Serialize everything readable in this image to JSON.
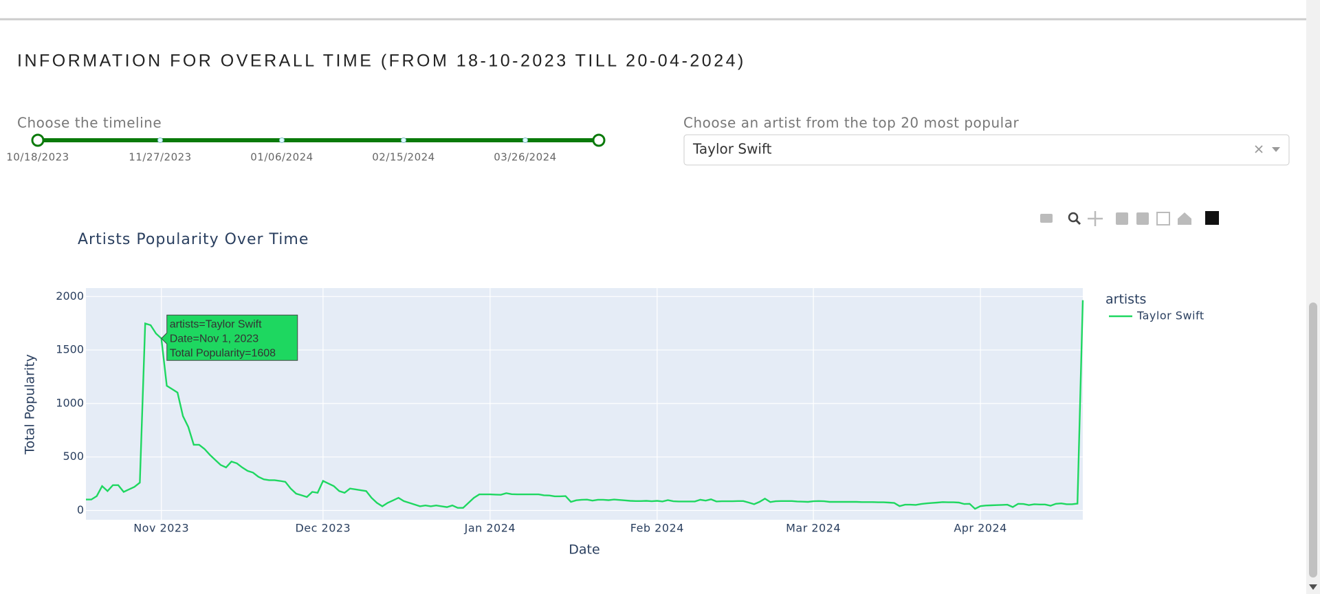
{
  "header": {
    "title": "INFORMATION FOR OVERALL TIME (FROM 18-10-2023 TILL 20-04-2024)"
  },
  "timeline": {
    "label": "Choose the timeline",
    "marks": [
      "10/18/2023",
      "11/27/2023",
      "01/06/2024",
      "02/15/2024",
      "03/26/2024"
    ]
  },
  "artist_select": {
    "label": "Choose an artist from the top 20 most popular",
    "value": "Taylor Swift"
  },
  "chart_data": {
    "type": "line",
    "title": "Artists Popularity Over Time",
    "x_label": "Date",
    "y_label": "Total Popularity",
    "legend_title": "artists",
    "grid": true,
    "tooltip": [
      "artists=Taylor Swift",
      "Date=Nov 1, 2023",
      "Total Popularity=1608"
    ],
    "xlim": [
      "2023-10-18",
      "2024-04-20"
    ],
    "xticks": [
      {
        "value": "2023-11-01",
        "label": "Nov 2023"
      },
      {
        "value": "2023-12-01",
        "label": "Dec 2023"
      },
      {
        "value": "2024-01-01",
        "label": "Jan 2024"
      },
      {
        "value": "2024-02-01",
        "label": "Feb 2024"
      },
      {
        "value": "2024-03-01",
        "label": "Mar 2024"
      },
      {
        "value": "2024-04-01",
        "label": "Apr 2024"
      }
    ],
    "ylim": [
      -87,
      2079
    ],
    "yticks": [
      0,
      500,
      1000,
      1500,
      2000
    ],
    "x": [
      "2023-10-18",
      "2023-10-19",
      "2023-10-20",
      "2023-10-21",
      "2023-10-22",
      "2023-10-23",
      "2023-10-24",
      "2023-10-25",
      "2023-10-26",
      "2023-10-27",
      "2023-10-28",
      "2023-10-29",
      "2023-10-30",
      "2023-10-31",
      "2023-11-01",
      "2023-11-02",
      "2023-11-03",
      "2023-11-04",
      "2023-11-05",
      "2023-11-06",
      "2023-11-07",
      "2023-11-08",
      "2023-11-09",
      "2023-11-10",
      "2023-11-11",
      "2023-11-12",
      "2023-11-13",
      "2023-11-14",
      "2023-11-15",
      "2023-11-16",
      "2023-11-17",
      "2023-11-18",
      "2023-11-19",
      "2023-11-20",
      "2023-11-21",
      "2023-11-22",
      "2023-11-23",
      "2023-11-24",
      "2023-11-25",
      "2023-11-26",
      "2023-11-27",
      "2023-11-28",
      "2023-11-29",
      "2023-11-30",
      "2023-12-01",
      "2023-12-02",
      "2023-12-03",
      "2023-12-04",
      "2023-12-05",
      "2023-12-06",
      "2023-12-07",
      "2023-12-08",
      "2023-12-09",
      "2023-12-10",
      "2023-12-11",
      "2023-12-12",
      "2023-12-13",
      "2023-12-14",
      "2023-12-15",
      "2023-12-16",
      "2023-12-17",
      "2023-12-18",
      "2023-12-19",
      "2023-12-20",
      "2023-12-21",
      "2023-12-22",
      "2023-12-23",
      "2023-12-24",
      "2023-12-25",
      "2023-12-26",
      "2023-12-27",
      "2023-12-28",
      "2023-12-29",
      "2023-12-30",
      "2023-12-31",
      "2024-01-01",
      "2024-01-02",
      "2024-01-03",
      "2024-01-04",
      "2024-01-05",
      "2024-01-06",
      "2024-01-07",
      "2024-01-08",
      "2024-01-09",
      "2024-01-10",
      "2024-01-11",
      "2024-01-12",
      "2024-01-13",
      "2024-01-14",
      "2024-01-15",
      "2024-01-16",
      "2024-01-17",
      "2024-01-18",
      "2024-01-19",
      "2024-01-20",
      "2024-01-21",
      "2024-01-22",
      "2024-01-23",
      "2024-01-24",
      "2024-01-25",
      "2024-01-26",
      "2024-01-27",
      "2024-01-28",
      "2024-01-29",
      "2024-01-30",
      "2024-01-31",
      "2024-02-01",
      "2024-02-02",
      "2024-02-03",
      "2024-02-04",
      "2024-02-05",
      "2024-02-06",
      "2024-02-07",
      "2024-02-08",
      "2024-02-09",
      "2024-02-10",
      "2024-02-11",
      "2024-02-12",
      "2024-02-13",
      "2024-02-14",
      "2024-02-15",
      "2024-02-16",
      "2024-02-17",
      "2024-02-18",
      "2024-02-19",
      "2024-02-20",
      "2024-02-21",
      "2024-02-22",
      "2024-02-23",
      "2024-02-24",
      "2024-02-25",
      "2024-02-26",
      "2024-02-27",
      "2024-02-28",
      "2024-02-29",
      "2024-03-01",
      "2024-03-02",
      "2024-03-03",
      "2024-03-04",
      "2024-03-05",
      "2024-03-06",
      "2024-03-07",
      "2024-03-08",
      "2024-03-09",
      "2024-03-10",
      "2024-03-11",
      "2024-03-12",
      "2024-03-13",
      "2024-03-14",
      "2024-03-15",
      "2024-03-16",
      "2024-03-17",
      "2024-03-18",
      "2024-03-19",
      "2024-03-20",
      "2024-03-21",
      "2024-03-22",
      "2024-03-23",
      "2024-03-24",
      "2024-03-25",
      "2024-03-26",
      "2024-03-27",
      "2024-03-28",
      "2024-03-29",
      "2024-03-30",
      "2024-03-31",
      "2024-04-01",
      "2024-04-02",
      "2024-04-03",
      "2024-04-04",
      "2024-04-05",
      "2024-04-06",
      "2024-04-07",
      "2024-04-08",
      "2024-04-09",
      "2024-04-10",
      "2024-04-11",
      "2024-04-12",
      "2024-04-13",
      "2024-04-14",
      "2024-04-15",
      "2024-04-16",
      "2024-04-17",
      "2024-04-18",
      "2024-04-19",
      "2024-04-20"
    ],
    "series": [
      {
        "name": "Taylor Swift",
        "color": "#1ed760",
        "values": [
          102,
          102,
          134,
          228,
          181,
          236,
          236,
          173,
          197,
          220,
          260,
          1748,
          1732,
          1654,
          1608,
          1165,
          1134,
          1102,
          882,
          780,
          614,
          614,
          575,
          520,
          472,
          425,
          402,
          457,
          441,
          402,
          370,
          354,
          315,
          291,
          283,
          283,
          276,
          268,
          205,
          157,
          142,
          126,
          173,
          165,
          276,
          252,
          228,
          181,
          165,
          205,
          197,
          189,
          181,
          118,
          71,
          39,
          71,
          94,
          118,
          87,
          71,
          55,
          39,
          47,
          39,
          47,
          39,
          31,
          47,
          24,
          24,
          71,
          118,
          150,
          150,
          150,
          148,
          146,
          162,
          152,
          150,
          150,
          150,
          150,
          150,
          142,
          140,
          132,
          132,
          134,
          80,
          95,
          100,
          101,
          92,
          100,
          100,
          96,
          102,
          98,
          94,
          90,
          88,
          88,
          90,
          86,
          90,
          84,
          96,
          86,
          84,
          84,
          84,
          84,
          100,
          92,
          104,
          84,
          86,
          86,
          86,
          88,
          88,
          74,
          58,
          80,
          110,
          78,
          86,
          88,
          88,
          88,
          84,
          82,
          80,
          86,
          88,
          86,
          80,
          80,
          80,
          80,
          80,
          80,
          78,
          78,
          78,
          76,
          76,
          74,
          70,
          40,
          54,
          54,
          52,
          60,
          66,
          70,
          74,
          78,
          76,
          76,
          74,
          60,
          62,
          15,
          40,
          46,
          48,
          50,
          52,
          54,
          32,
          62,
          60,
          50,
          58,
          56,
          56,
          44,
          62,
          66,
          58,
          58,
          64,
          1965
        ]
      }
    ]
  }
}
